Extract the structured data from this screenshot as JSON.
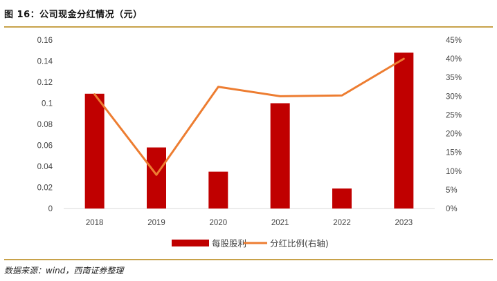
{
  "header": {
    "title": "图 16：公司现金分红情况（元）"
  },
  "footer": {
    "source": "数据来源：wind，西南证券整理"
  },
  "colors": {
    "bar": "#c00000",
    "line": "#ed7d31",
    "rule": "#c8a24a",
    "axis": "#d9d9d9"
  },
  "chart_data": {
    "type": "bar",
    "title": "图 16：公司现金分红情况（元）",
    "categories": [
      "2018",
      "2019",
      "2020",
      "2021",
      "2022",
      "2023"
    ],
    "series": [
      {
        "name": "每股股利",
        "type": "bar",
        "axis": "left",
        "values": [
          0.109,
          0.058,
          0.035,
          0.1,
          0.019,
          0.148
        ]
      },
      {
        "name": "分红比例(右轴)",
        "type": "line",
        "axis": "right",
        "values": [
          0.305,
          0.09,
          0.325,
          0.3,
          0.302,
          0.4
        ]
      }
    ],
    "ylim": [
      0,
      0.16
    ],
    "yticks": [
      "0",
      "0.02",
      "0.04",
      "0.06",
      "0.08",
      "0.1",
      "0.12",
      "0.14",
      "0.16"
    ],
    "y2lim": [
      0,
      0.45
    ],
    "y2ticks": [
      "0%",
      "5%",
      "10%",
      "15%",
      "20%",
      "25%",
      "30%",
      "35%",
      "40%",
      "45%"
    ],
    "legend": "bottom",
    "grid": false
  }
}
